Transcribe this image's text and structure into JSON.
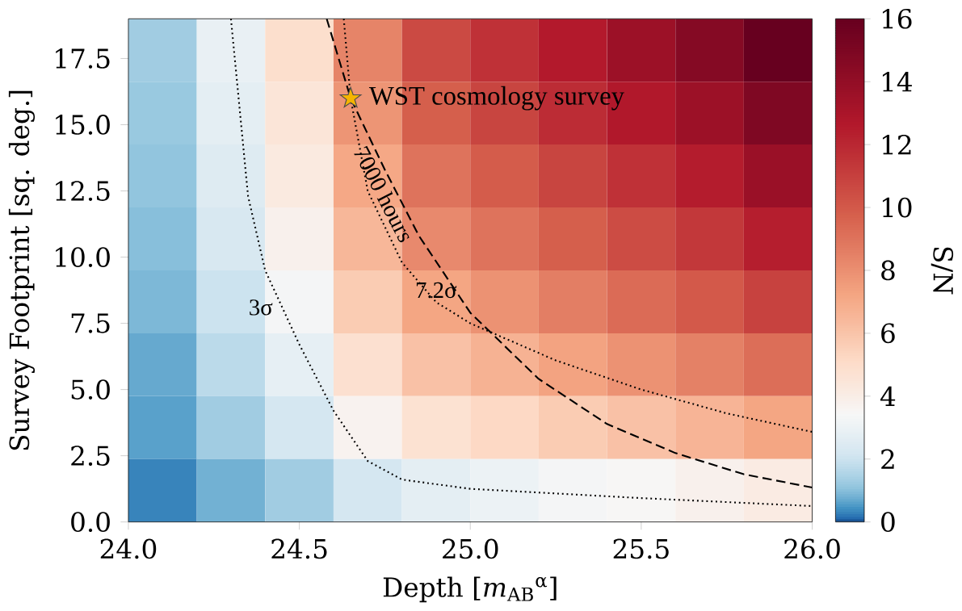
{
  "chart_data": {
    "type": "heatmap",
    "xlabel": "Depth [*m*$_{AB}$$^{α}$]",
    "ylabel": "Survey Footprint [sq. deg.]",
    "clabel": "S/N",
    "x": [
      24.1,
      24.3,
      24.5,
      24.7,
      24.9,
      25.1,
      25.3,
      25.5,
      25.7,
      25.9
    ],
    "y": [
      17.8125,
      15.4375,
      13.0625,
      10.6875,
      8.3125,
      5.9375,
      3.5625,
      1.1875
    ],
    "cells": [
      [
        1.3,
        2.9,
        4.9,
        8.4,
        10.6,
        11.6,
        12.6,
        13.6,
        14.6,
        16.0
      ],
      [
        1.2,
        2.7,
        4.5,
        7.8,
        9.8,
        10.8,
        11.8,
        12.7,
        13.6,
        14.9
      ],
      [
        1.1,
        2.5,
        4.2,
        7.1,
        9.0,
        9.9,
        10.8,
        11.6,
        12.5,
        13.7
      ],
      [
        1.0,
        2.3,
        3.8,
        6.5,
        8.2,
        9.0,
        9.8,
        10.5,
        11.3,
        12.4
      ],
      [
        0.9,
        2.0,
        3.3,
        5.7,
        7.2,
        7.9,
        8.6,
        9.3,
        10.0,
        10.9
      ],
      [
        0.7,
        1.7,
        2.8,
        4.8,
        6.1,
        6.7,
        7.3,
        7.9,
        8.5,
        9.2
      ],
      [
        0.6,
        1.3,
        2.2,
        3.7,
        4.7,
        5.2,
        5.7,
        6.1,
        6.6,
        7.2
      ],
      [
        0.3,
        0.8,
        1.3,
        2.2,
        2.7,
        3.0,
        3.3,
        3.5,
        3.8,
        4.1
      ]
    ],
    "clim": [
      0,
      16
    ],
    "cticks": [
      0,
      2,
      4,
      6,
      8,
      10,
      12,
      14,
      16
    ],
    "xlim": [
      24.0,
      26.0
    ],
    "xticks": [
      {
        "value": 24,
        "label": "24.0"
      },
      24.5,
      {
        "value": 25,
        "label": "25.0"
      },
      25.5,
      {
        "value": 26,
        "label": "26.0"
      }
    ],
    "ylim": [
      0,
      19
    ],
    "yticks": [
      {
        "value": 0,
        "label": "0.0"
      },
      2.5,
      {
        "value": 5,
        "label": "5.0"
      },
      7.5,
      {
        "value": 10,
        "label": "10.0"
      },
      12.5,
      {
        "value": 15,
        "label": "15.0"
      },
      17.5
    ],
    "series": [
      {
        "type": "line",
        "name": "3σ",
        "color": "#000000",
        "line_style": "dotted",
        "x": [
          24.3,
          24.35,
          24.4,
          24.5,
          24.6,
          24.7,
          24.8,
          25.0,
          25.5,
          26.0
        ],
        "values": [
          19,
          12.3,
          9.5,
          6.7,
          4.2,
          2.3,
          1.6,
          1.25,
          0.9,
          0.6
        ]
      },
      {
        "type": "line",
        "name": "7.2σ",
        "color": "#000000",
        "line_style": "dotted",
        "x": [
          24.63,
          24.65,
          24.7,
          24.8,
          24.9,
          25.0,
          25.25,
          25.5,
          25.75,
          26.0
        ],
        "values": [
          19,
          16,
          12.5,
          9.8,
          8.3,
          7.5,
          6.1,
          5.0,
          4.1,
          3.4
        ]
      },
      {
        "type": "line",
        "name": "7000 hours",
        "color": "#000000",
        "line_style": "dashed",
        "x": [
          24.58,
          24.65,
          24.75,
          24.85,
          25.0,
          25.2,
          25.4,
          25.6,
          25.8,
          26.0
        ],
        "values": [
          19,
          16,
          13.3,
          10.8,
          7.9,
          5.4,
          3.7,
          2.6,
          1.8,
          1.3
        ]
      },
      {
        "type": "scatter",
        "name": "WST cosmology survey",
        "color": "#f5b400",
        "marker": "star",
        "x": [
          24.65
        ],
        "values": [
          16
        ]
      }
    ]
  }
}
